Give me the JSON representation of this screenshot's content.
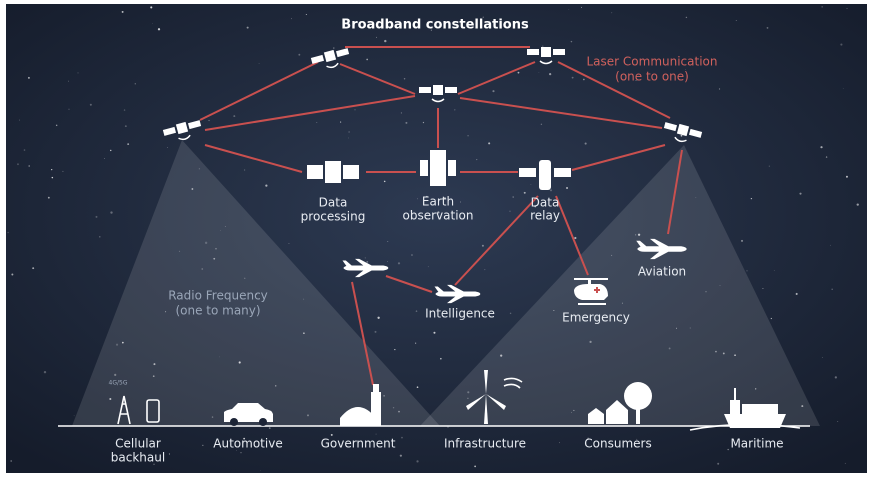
{
  "title": "Broadband constellations",
  "laser_label": [
    "Laser Communication",
    "(one to one)"
  ],
  "rf_label": [
    "Radio Frequency",
    "(one to many)"
  ],
  "space_nodes": [
    {
      "label": [
        "Data",
        "processing"
      ]
    },
    {
      "label": [
        "Earth",
        "observation"
      ]
    },
    {
      "label": [
        "Data",
        "relay"
      ]
    }
  ],
  "air_nodes": [
    {
      "label": "Intelligence"
    },
    {
      "label": "Emergency"
    },
    {
      "label": "Aviation"
    }
  ],
  "ground": [
    {
      "label": [
        "Cellular",
        "backhaul"
      ],
      "badge": "4G/5G"
    },
    {
      "label": [
        "Automotive"
      ]
    },
    {
      "label": [
        "Government"
      ]
    },
    {
      "label": [
        "Infrastructure"
      ]
    },
    {
      "label": [
        "Consumers"
      ]
    },
    {
      "label": [
        "Maritime"
      ]
    }
  ]
}
